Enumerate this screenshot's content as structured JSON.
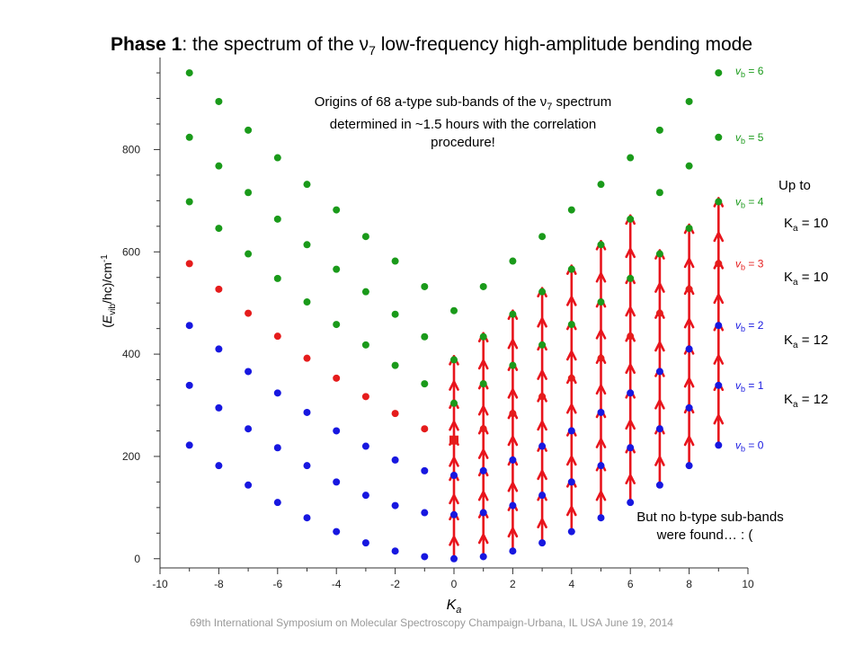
{
  "title": {
    "bold": "Phase 1",
    "rest_before_nu": ": the  spectrum of the ",
    "nu": "ν",
    "nu_sub": "7",
    "rest_after_nu": " low-frequency high-amplitude bending mode"
  },
  "annotation": {
    "line1_before_nu": "Origins of 68 a-type sub-bands of the ",
    "nu": "ν",
    "nu_sub": "7",
    "line1_after_nu": " spectrum",
    "line2": "determined in ~1.5 hours with the correlation",
    "line3": "procedure!"
  },
  "bottom_note": {
    "line1": "But no b-type sub-bands",
    "line2": "were found… : ("
  },
  "side_notes": {
    "up_to": "Up to",
    "ka_base": "K",
    "ka_sub": "a",
    "items": [
      " = 10",
      " = 10",
      " = 12",
      " = 12"
    ]
  },
  "footer": "69th International Symposium on Molecular Spectroscopy     Champaign-Urbana, IL  USA    June 19, 2014",
  "colors": {
    "green": "#1a9a1a",
    "red": "#e51c1c",
    "blue": "#1717e0",
    "arrow": "#e8141c"
  },
  "chart_data": {
    "type": "scatter",
    "xlabel": "Ka",
    "ylabel": "(Evib/hc)/cm-1",
    "xlim": [
      -10,
      10
    ],
    "ylim": [
      -18,
      980
    ],
    "xticks": [
      -10,
      -8,
      -6,
      -4,
      -2,
      0,
      2,
      4,
      6,
      8,
      10
    ],
    "yticks": [
      0,
      200,
      400,
      600,
      800
    ],
    "grid": false,
    "series": [
      {
        "name": "vb = 0",
        "label_tex": [
          "v",
          "b",
          " = 0"
        ],
        "color": "blue",
        "x": [
          -9,
          -8,
          -7,
          -6,
          -5,
          -4,
          -3,
          -2,
          -1,
          0,
          1,
          2,
          3,
          4,
          5,
          6,
          7,
          8,
          9
        ],
        "y": [
          222,
          182,
          144,
          110,
          80,
          53,
          31,
          15,
          4,
          0,
          4,
          15,
          31,
          53,
          80,
          110,
          144,
          182,
          222
        ]
      },
      {
        "name": "vb = 1",
        "label_tex": [
          "v",
          "b",
          " = 1"
        ],
        "color": "blue",
        "x": [
          -9,
          -8,
          -7,
          -6,
          -5,
          -4,
          -3,
          -2,
          -1,
          0,
          1,
          2,
          3,
          4,
          5,
          6,
          7,
          8,
          9
        ],
        "y": [
          339,
          295,
          254,
          217,
          182,
          150,
          124,
          104,
          90,
          86,
          90,
          104,
          124,
          150,
          182,
          217,
          254,
          295,
          339
        ]
      },
      {
        "name": "vb = 2",
        "label_tex": [
          "v",
          "b",
          " = 2"
        ],
        "color": "blue",
        "x": [
          -9,
          -8,
          -7,
          -6,
          -5,
          -4,
          -3,
          -2,
          -1,
          0,
          1,
          2,
          3,
          4,
          5,
          6,
          7,
          8,
          9
        ],
        "y": [
          456,
          410,
          366,
          324,
          286,
          250,
          220,
          193,
          172,
          163,
          172,
          193,
          220,
          250,
          286,
          324,
          366,
          410,
          456
        ]
      },
      {
        "name": "vb = 3",
        "label_tex": [
          "v",
          "b",
          " = 3"
        ],
        "color": "red",
        "x": [
          -9,
          -8,
          -7,
          -6,
          -5,
          -4,
          -3,
          -2,
          -1,
          0,
          1,
          2,
          3,
          4,
          5,
          6,
          7,
          8,
          9
        ],
        "y": [
          577,
          527,
          480,
          435,
          392,
          353,
          317,
          284,
          254,
          232,
          254,
          284,
          317,
          353,
          392,
          435,
          480,
          527,
          577
        ]
      },
      {
        "name": "vb = 4",
        "label_tex": [
          "v",
          "b",
          " = 4"
        ],
        "color": "green",
        "x": [
          -9,
          -8,
          -7,
          -6,
          -5,
          -4,
          -3,
          -2,
          -1,
          0,
          1,
          2,
          3,
          4,
          5,
          6,
          7,
          8,
          9
        ],
        "y": [
          698,
          646,
          596,
          548,
          502,
          458,
          418,
          378,
          342,
          304,
          342,
          378,
          418,
          458,
          502,
          548,
          596,
          646,
          698
        ]
      },
      {
        "name": "vb = 5",
        "label_tex": [
          "v",
          "b",
          " = 5"
        ],
        "color": "green",
        "x": [
          -9,
          -8,
          -7,
          -6,
          -5,
          -4,
          -3,
          -2,
          -1,
          0,
          1,
          2,
          3,
          4,
          5,
          6,
          7,
          8,
          9
        ],
        "y": [
          824,
          768,
          716,
          664,
          614,
          566,
          522,
          478,
          434,
          389,
          434,
          478,
          522,
          566,
          614,
          664,
          716,
          768,
          824
        ]
      },
      {
        "name": "vb = 6",
        "label_tex": [
          "v",
          "b",
          " = 6"
        ],
        "color": "green",
        "x": [
          -9,
          -8,
          -7,
          -6,
          -5,
          -4,
          -3,
          -2,
          -1,
          0,
          1,
          2,
          3,
          4,
          5,
          6,
          7,
          8,
          9
        ],
        "y": [
          950,
          894,
          838,
          784,
          732,
          682,
          630,
          582,
          532,
          485,
          532,
          582,
          630,
          682,
          732,
          784,
          838,
          894,
          950
        ]
      }
    ],
    "marker_square": {
      "x": 0,
      "y": 232
    }
  }
}
